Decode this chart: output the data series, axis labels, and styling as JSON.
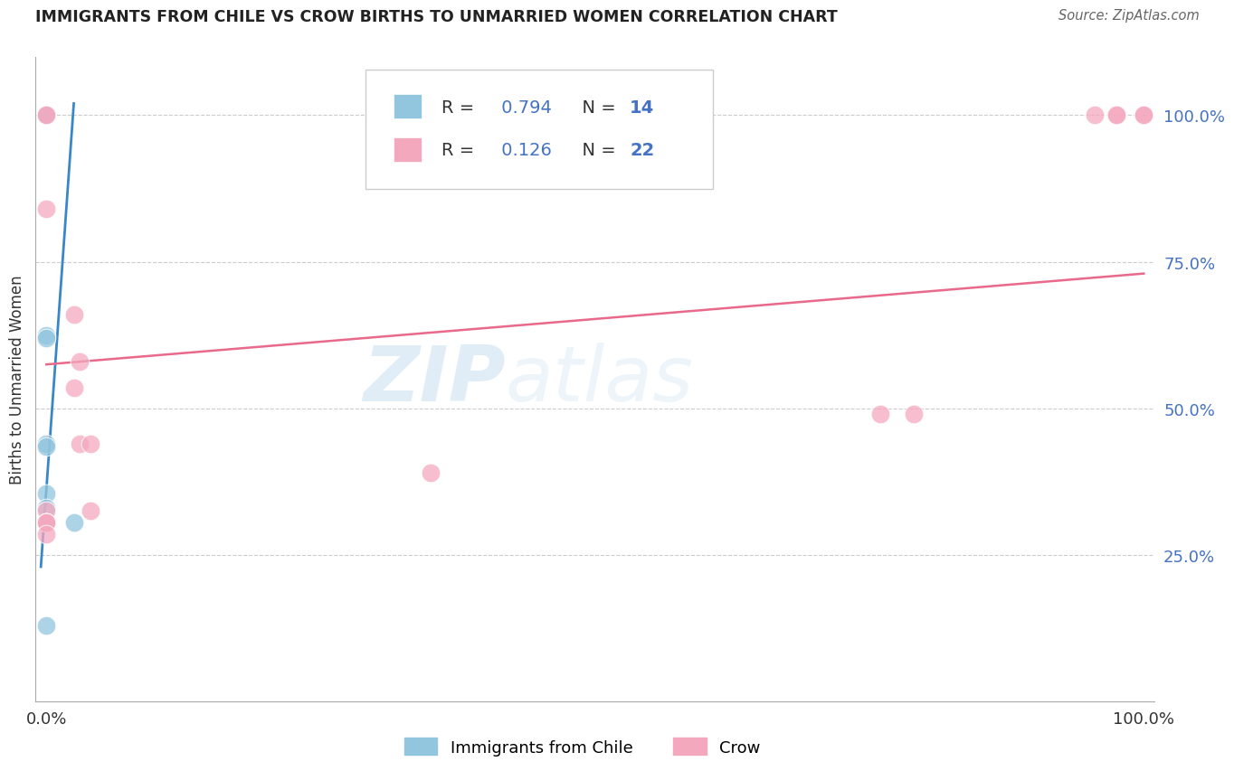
{
  "title": "IMMIGRANTS FROM CHILE VS CROW BIRTHS TO UNMARRIED WOMEN CORRELATION CHART",
  "source": "Source: ZipAtlas.com",
  "ylabel": "Births to Unmarried Women",
  "legend_label1": "Immigrants from Chile",
  "legend_label2": "Crow",
  "R1": 0.794,
  "N1": 14,
  "R2": 0.126,
  "N2": 22,
  "blue_color": "#92c5de",
  "pink_color": "#f4a8be",
  "blue_line_color": "#3a87c8",
  "pink_line_color": "#e8698a",
  "watermark_zip": "ZIP",
  "watermark_atlas": "atlas",
  "blue_points_x": [
    0.0,
    0.0,
    0.0,
    0.0,
    0.0,
    0.0,
    0.0,
    0.0,
    0.0,
    0.0,
    0.0,
    0.0,
    0.025,
    0.0
  ],
  "blue_points_y": [
    1.0,
    1.0,
    0.625,
    0.62,
    0.44,
    0.435,
    0.355,
    0.33,
    0.305,
    0.305,
    0.305,
    0.305,
    0.305,
    0.13
  ],
  "pink_points_x": [
    0.0,
    0.0,
    0.0,
    0.025,
    0.03,
    0.025,
    0.03,
    0.04,
    0.04,
    0.35,
    0.76,
    0.79,
    0.955,
    0.975,
    0.975,
    1.0,
    1.0,
    0.0,
    0.0,
    0.0,
    0.0,
    0.0
  ],
  "pink_points_y": [
    1.0,
    1.0,
    0.84,
    0.66,
    0.58,
    0.535,
    0.44,
    0.44,
    0.325,
    0.39,
    0.49,
    0.49,
    1.0,
    1.0,
    1.0,
    1.0,
    1.0,
    0.325,
    0.305,
    0.305,
    0.305,
    0.285
  ],
  "blue_trend_x": [
    -0.005,
    0.025
  ],
  "blue_trend_y": [
    0.23,
    1.02
  ],
  "pink_trend_x": [
    0.0,
    1.0
  ],
  "pink_trend_y": [
    0.575,
    0.73
  ],
  "xlim": [
    -0.01,
    1.01
  ],
  "ylim": [
    0.0,
    1.1
  ],
  "yticks": [
    0.25,
    0.5,
    0.75,
    1.0
  ],
  "ytick_labels": [
    "25.0%",
    "50.0%",
    "75.0%",
    "100.0%"
  ],
  "xticks": [
    0.0,
    1.0
  ],
  "xtick_labels": [
    "0.0%",
    "100.0%"
  ],
  "background_color": "#ffffff",
  "grid_color": "#cccccc",
  "tick_label_color": "#4472c4",
  "title_color": "#222222",
  "source_color": "#666666"
}
